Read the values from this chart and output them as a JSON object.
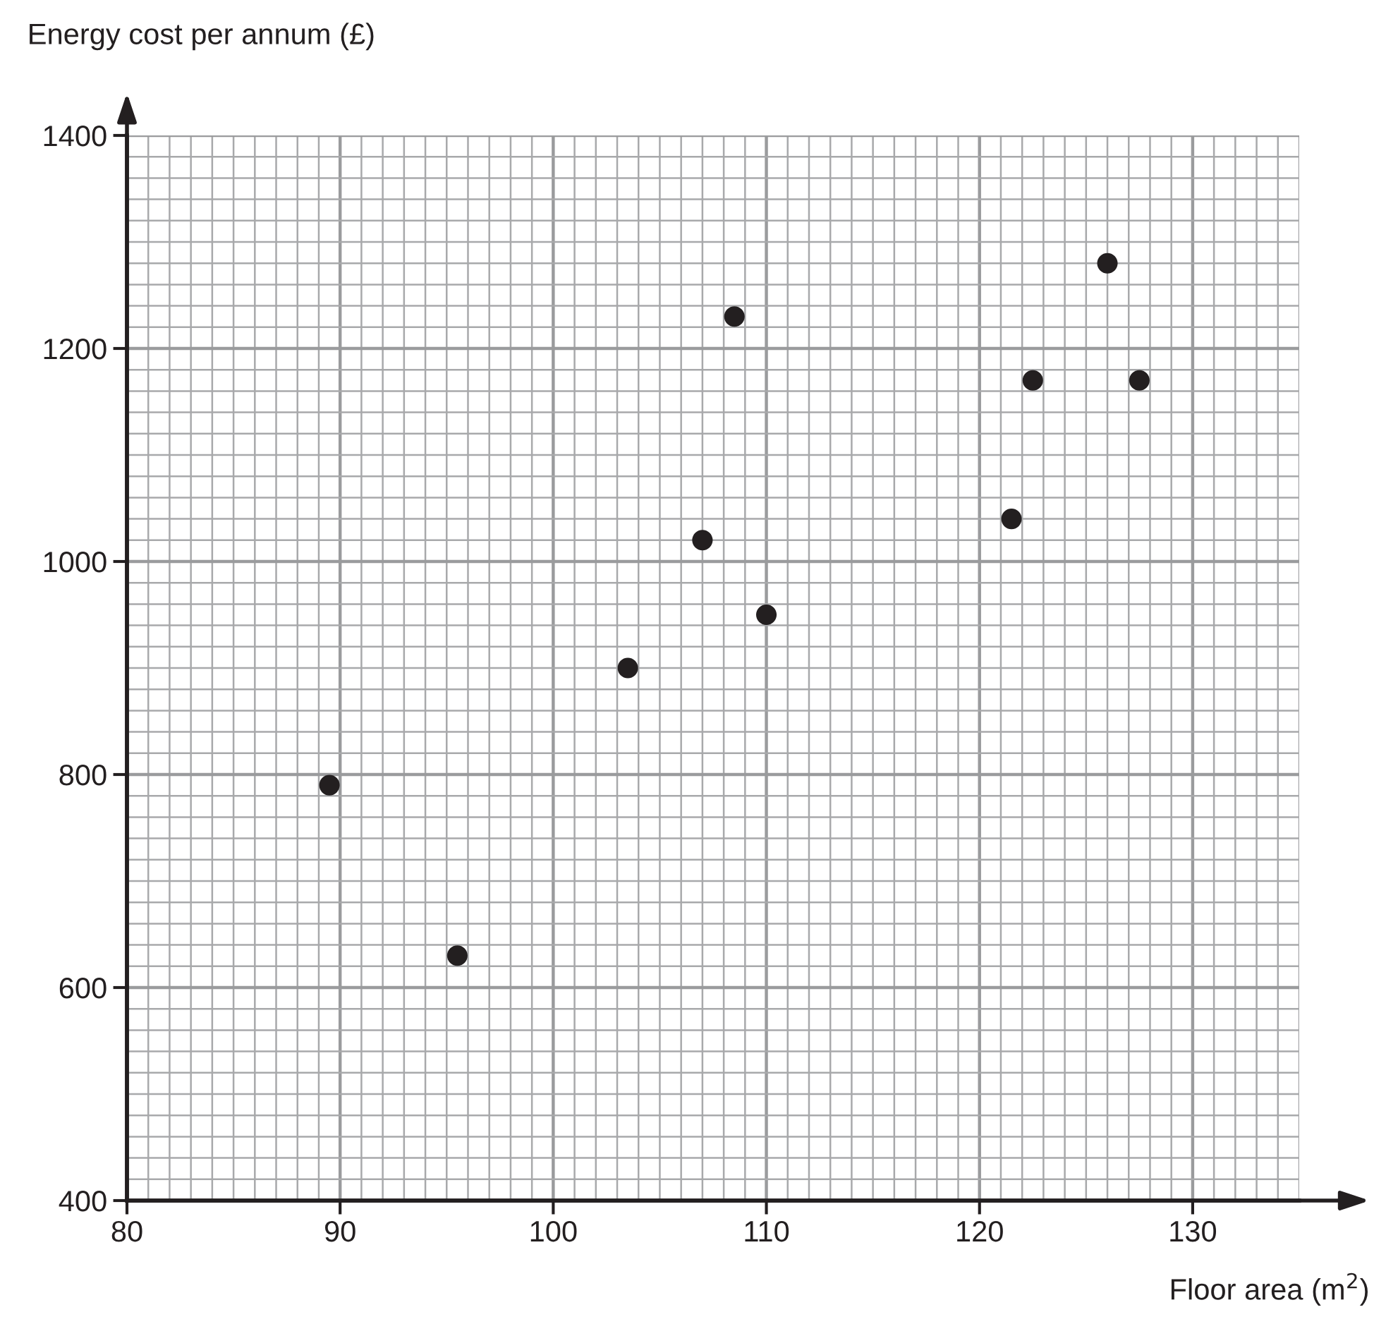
{
  "chart_data": {
    "type": "scatter",
    "xlabel": "Floor area (m$^{2}$)",
    "ylabel": "Energy cost per annum (£)",
    "x": [
      89.5,
      95.5,
      103.5,
      107,
      108.5,
      110,
      121.5,
      122.5,
      126,
      127.5
    ],
    "series": [
      {
        "color": "#231f20",
        "values": [
          790,
          630,
          900,
          1020,
          1230,
          950,
          1040,
          1170,
          1280,
          1170
        ]
      }
    ],
    "xlim": [
      80,
      135
    ],
    "ylim": [
      400,
      1400
    ],
    "xticks": [
      80,
      90,
      100,
      110,
      120,
      130
    ],
    "yticks": [
      400,
      600,
      800,
      1000,
      1200,
      1400
    ],
    "grid": true,
    "marker": "circle",
    "legend": false
  }
}
